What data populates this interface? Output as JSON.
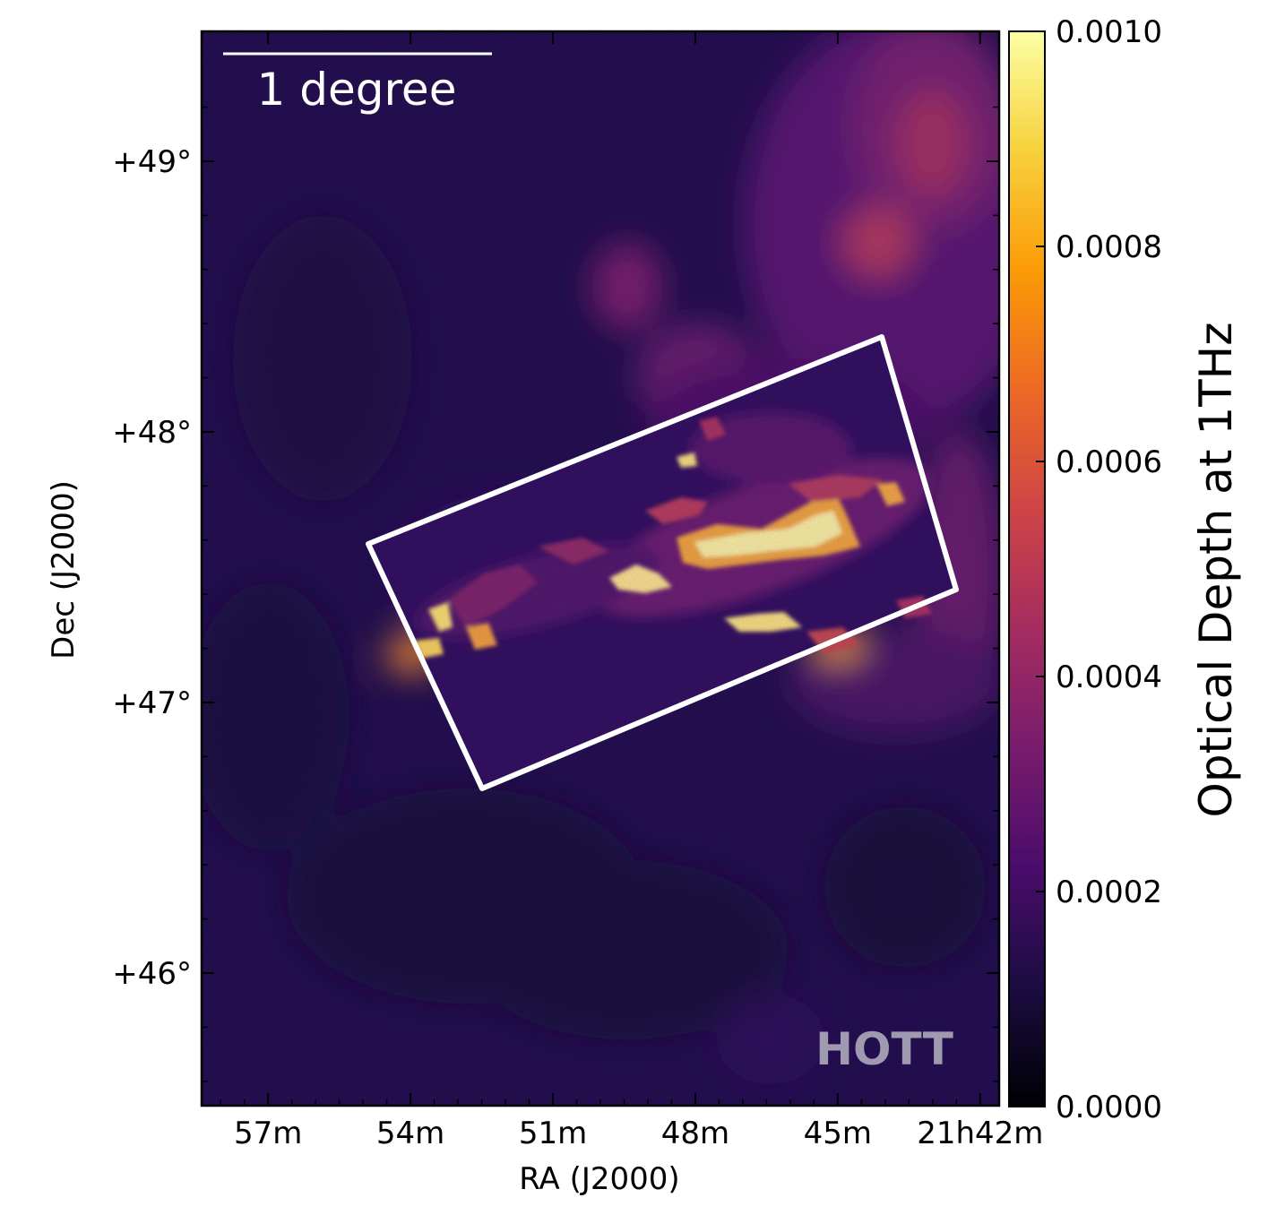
{
  "chart_data": {
    "type": "heatmap",
    "title": "",
    "xlabel": "RA (J2000)",
    "ylabel": "Dec (J2000)",
    "x_ticks": [
      {
        "label": "57m",
        "ra_min": 57
      },
      {
        "label": "54m",
        "ra_min": 54
      },
      {
        "label": "51m",
        "ra_min": 51
      },
      {
        "label": "48m",
        "ra_min": 48
      },
      {
        "label": "45m",
        "ra_min": 45
      },
      {
        "label": "21h42m",
        "ra_min": 42
      }
    ],
    "y_ticks": [
      {
        "label": "+49°",
        "dec": 49
      },
      {
        "label": "+48°",
        "dec": 48
      },
      {
        "label": "+47°",
        "dec": 47
      },
      {
        "label": "+46°",
        "dec": 46
      }
    ],
    "xlim_ra_min": [
      58.4,
      41.6
    ],
    "ylim_dec_deg": [
      45.51,
      49.48
    ],
    "colorbar": {
      "label": "Optical Depth at 1THz",
      "range": [
        0.0,
        0.001
      ],
      "colormap": "inferno",
      "tick_labels": [
        "0.0000",
        "0.0002",
        "0.0004",
        "0.0006",
        "0.0008",
        "0.0010"
      ]
    },
    "scalebar_label": "1 degree",
    "watermark": "HOTT",
    "survey_footprint": {
      "shape": "rotated rectangle",
      "corners_ra_dec": [
        [
          55.35,
          47.57
        ],
        [
          52.8,
          46.67
        ],
        [
          43.15,
          47.4
        ],
        [
          44.8,
          48.35
        ]
      ]
    },
    "grid": false
  },
  "colors": {
    "background": "#1f0c48",
    "colormap_stops": [
      "#000004",
      "#1b0c41",
      "#4a0c6b",
      "#781c6d",
      "#a52c60",
      "#cf4446",
      "#ed6925",
      "#fb9b06",
      "#f7d13d",
      "#fcffa4"
    ],
    "footprint": "#ffffff",
    "axis": "#000000",
    "watermark": "#a09ab0"
  }
}
